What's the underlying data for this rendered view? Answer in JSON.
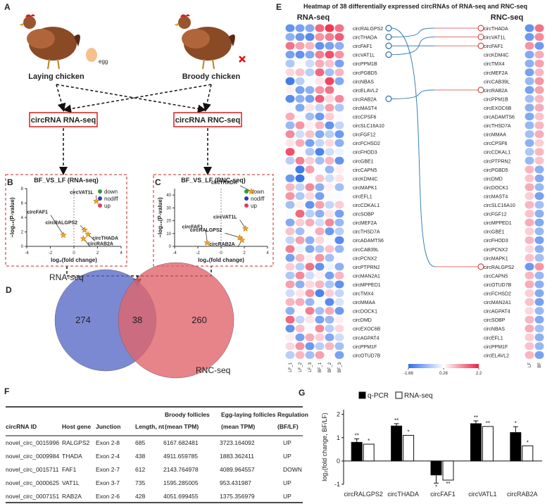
{
  "panel_a": {
    "panel": "A",
    "egg": "egg",
    "laying": "Laying chicken",
    "broody": "Broody chicken",
    "rna_box": "circRNA RNA-seq",
    "rnc_box": "circRNA RNC-seq"
  },
  "chart_data": [
    {
      "type": "scatter",
      "panel": "B",
      "title": "BF_VS_LF (RNA-seq)",
      "xlabel": "log₂(fold change)",
      "ylabel": "−log₁₀(P-value)",
      "xlim": [
        -4,
        4
      ],
      "xticks": [
        -4,
        -2,
        0,
        2,
        4
      ],
      "ylim": [
        0,
        8
      ],
      "yticks": [
        0,
        2,
        4,
        6,
        8
      ],
      "legend": [
        {
          "name": "down",
          "color": "#2ca02c"
        },
        {
          "name": "nodiff",
          "color": "#2340b8"
        },
        {
          "name": "up",
          "color": "#e0405e"
        }
      ],
      "series": [
        {
          "name": null,
          "color": "#f2a51e",
          "labels": [
            "circFAF1",
            "circVAT1L",
            "circRALGPS2",
            "circTHADA",
            "circRAB2A"
          ],
          "x": [
            -0.9,
            1.9,
            0.9,
            1.2,
            0.8
          ],
          "y": [
            1.6,
            6.3,
            2.3,
            1.7,
            1.1
          ]
        }
      ]
    },
    {
      "type": "scatter",
      "panel": "C",
      "title": "BF_VS_LF (RNC-seq)",
      "xlabel": "log₂(fold change)",
      "ylabel": "−log₁₀(P-value)",
      "xlim": [
        -4,
        4
      ],
      "xticks": [
        -4,
        -2,
        0,
        2,
        4
      ],
      "ylim": [
        0,
        45
      ],
      "yticks": [
        0,
        10,
        20,
        30,
        40
      ],
      "legend": [
        {
          "name": "down",
          "color": "#2ca02c"
        },
        {
          "name": "nodiff",
          "color": "#2340b8"
        },
        {
          "name": "up",
          "color": "#e0405e"
        }
      ],
      "series": [
        {
          "name": null,
          "color": "#f2a51e",
          "labels": [
            "circTHADA",
            "circVAT1L",
            "circRALGPS2",
            "circRAB2A",
            "circFAF1"
          ],
          "x": [
            2.6,
            2.1,
            1.6,
            1.8,
            -1.2
          ],
          "y": [
            43,
            14,
            7,
            5,
            3
          ]
        }
      ]
    },
    {
      "type": "venn",
      "panel": "D",
      "sets": [
        "RNA-seq",
        "RNC-seq"
      ],
      "values": [
        274,
        38,
        260
      ],
      "colors": [
        "#5a6cc8",
        "#e0656c"
      ]
    },
    {
      "type": "heatmap",
      "panel": "E",
      "title": "Heatmap of 38 differentially expressed circRNAs of RNA-seq and RNC-seq",
      "scale": {
        "ticks": [
          -1.68,
          0.26,
          2.2
        ],
        "colors": [
          "#2f6fe8",
          "#ffffff",
          "#ec2344"
        ]
      },
      "panels": [
        {
          "title": "RNA-seq",
          "columns": [
            "LF_1",
            "LF_2",
            "LF_3",
            "BF_1",
            "BF_2",
            "BF_3"
          ],
          "rows": [
            "circRALGPS2",
            "circTHADA",
            "circFAF1",
            "circVAT1L",
            "circPPM1B",
            "circPGBD5",
            "circNBAS",
            "circELAVL2",
            "circRAB2A",
            "circMAST4",
            "circCPSF6",
            "circSLC16A10",
            "circFGF12",
            "circFCHSD2",
            "circFHOD3",
            "circGBE1",
            "circCAPN5",
            "circKDM4C",
            "circMAPK1",
            "circEFL1",
            "circCDKAL1",
            "circSOBP",
            "circMEF2A",
            "circTHSD7A",
            "circADAMTS6",
            "circCAB39L",
            "circPCNX2",
            "circPTPRN2",
            "circMAN2A1",
            "circMPPED1",
            "circTMX4",
            "circMMAA",
            "circDOCK1",
            "circDMD",
            "circEXOC6B",
            "circAGPAT4",
            "circPPM1F",
            "circOTUD7B"
          ],
          "values": [
            [
              -1.2,
              -1.0,
              -0.9,
              1.6,
              2.0,
              1.5
            ],
            [
              -0.8,
              -1.1,
              -1.3,
              1.2,
              1.4,
              1.7
            ],
            [
              1.5,
              1.1,
              0.9,
              -1.2,
              -1.0,
              -0.8
            ],
            [
              -1.0,
              -1.2,
              -0.9,
              1.4,
              1.8,
              1.2
            ],
            [
              -0.5,
              0.3,
              -0.2,
              1.0,
              0.8,
              -1.0
            ],
            [
              0.6,
              0.8,
              -0.4,
              1.6,
              -0.6,
              0.9
            ],
            [
              -1.5,
              -0.4,
              0.2,
              0.5,
              1.9,
              -0.9
            ],
            [
              0.4,
              -1.0,
              -0.8,
              1.2,
              1.5,
              0.3
            ],
            [
              -1.3,
              -0.8,
              -1.0,
              1.7,
              0.6,
              1.3
            ],
            [
              0.2,
              -0.9,
              0.5,
              -0.3,
              1.1,
              -0.5
            ],
            [
              1.0,
              0.3,
              -0.6,
              -1.1,
              0.7,
              0.2
            ],
            [
              -0.7,
              1.2,
              0.4,
              0.9,
              -1.2,
              -0.3
            ],
            [
              1.3,
              -0.2,
              0.8,
              -0.9,
              -0.4,
              -1.1
            ],
            [
              0.5,
              1.0,
              -1.0,
              -0.3,
              0.6,
              -0.8
            ],
            [
              1.8,
              0.2,
              -0.5,
              -1.4,
              -0.2,
              0.1
            ],
            [
              -0.4,
              1.4,
              0.7,
              -0.6,
              0.9,
              -1.2
            ],
            [
              0.3,
              -1.5,
              1.1,
              0.2,
              -0.7,
              0.4
            ],
            [
              -1.1,
              -1.6,
              0.3,
              0.8,
              -0.2,
              0.5
            ],
            [
              0.9,
              -0.3,
              1.3,
              -0.8,
              0.4,
              -0.6
            ],
            [
              1.2,
              -0.5,
              0.6,
              -1.0,
              0.3,
              0.2
            ],
            [
              -0.6,
              0.4,
              -1.2,
              1.1,
              -0.3,
              0.7
            ],
            [
              0.2,
              1.6,
              -0.4,
              -0.8,
              0.5,
              -1.0
            ],
            [
              -0.9,
              0.7,
              1.0,
              -0.2,
              1.3,
              -0.7
            ],
            [
              0.8,
              -0.6,
              0.3,
              1.0,
              -1.1,
              -0.4
            ],
            [
              -0.3,
              1.1,
              -0.8,
              0.6,
              0.2,
              -1.3
            ],
            [
              1.4,
              0.1,
              -0.9,
              -0.5,
              0.8,
              -0.7
            ],
            [
              -1.0,
              0.9,
              0.4,
              1.2,
              -0.6,
              0.3
            ],
            [
              0.7,
              -0.4,
              1.5,
              -1.2,
              0.1,
              -0.8
            ],
            [
              -0.5,
              1.3,
              -0.2,
              0.4,
              -1.0,
              0.9
            ],
            [
              1.1,
              -0.8,
              0.6,
              0.9,
              -0.5,
              -1.2
            ],
            [
              -0.2,
              0.5,
              1.2,
              -1.4,
              0.7,
              -0.3
            ],
            [
              0.9,
              1.0,
              -0.7,
              0.2,
              -1.3,
              -0.1
            ],
            [
              -0.8,
              0.3,
              1.4,
              -0.6,
              1.0,
              -1.1
            ],
            [
              1.6,
              -0.3,
              0.5,
              -1.0,
              -0.7,
              0.4
            ],
            [
              -1.2,
              0.8,
              0.2,
              1.3,
              -0.4,
              0.6
            ],
            [
              0.4,
              -1.0,
              1.0,
              0.7,
              -0.9,
              -0.2
            ],
            [
              0.6,
              1.2,
              -1.1,
              -0.4,
              0.9,
              -0.6
            ],
            [
              -0.4,
              0.9,
              -0.6,
              1.1,
              0.3,
              -1.0
            ]
          ]
        },
        {
          "title": "RNC-seq",
          "columns": [
            "LF",
            "BF"
          ],
          "rows": [
            "circTHADA",
            "circVAT1L",
            "circFAF1",
            "circKDM4C",
            "circTMX4",
            "circMEF2A",
            "circCAB39L",
            "circRAB2A",
            "circPPM1B",
            "circEXOC6B",
            "circADAMTS6",
            "circTHSD7A",
            "circMMAA",
            "circCPSF6",
            "circCDKAL1",
            "circPTPRN2",
            "circPGBD5",
            "circDMD",
            "circDOCK1",
            "circMAST4",
            "circSLC16A10",
            "circFGF12",
            "circMPPED1",
            "circGBE1",
            "circFHOD3",
            "circPCNX2",
            "circMAPK1",
            "circRALGPS2",
            "circCAPN5",
            "circOTUD7B",
            "circFCHSD2",
            "circMAN2A1",
            "circAGPAT4",
            "circSOBP",
            "circNBAS",
            "circEFL1",
            "circPPM1F",
            "circELAVL2"
          ],
          "values": [
            [
              -1.2,
              1.5
            ],
            [
              -1.1,
              1.3
            ],
            [
              1.2,
              -1.1
            ],
            [
              -0.9,
              1.0
            ],
            [
              -0.8,
              1.1
            ],
            [
              -1.0,
              0.9
            ],
            [
              -0.7,
              1.2
            ],
            [
              -1.0,
              1.1
            ],
            [
              -0.6,
              0.9
            ],
            [
              -0.8,
              1.0
            ],
            [
              -0.9,
              0.8
            ],
            [
              -0.7,
              0.9
            ],
            [
              -0.6,
              1.0
            ],
            [
              -0.8,
              0.7
            ],
            [
              -0.5,
              0.9
            ],
            [
              -0.7,
              0.8
            ],
            [
              0.9,
              -0.8
            ],
            [
              0.8,
              -0.9
            ],
            [
              1.0,
              -0.7
            ],
            [
              0.7,
              -1.0
            ],
            [
              0.9,
              -0.6
            ],
            [
              0.8,
              -0.8
            ],
            [
              1.0,
              -0.9
            ],
            [
              0.7,
              -0.7
            ],
            [
              0.9,
              -1.0
            ],
            [
              0.6,
              -0.8
            ],
            [
              0.8,
              -0.6
            ],
            [
              -1.1,
              1.2
            ],
            [
              0.9,
              -0.7
            ],
            [
              1.0,
              -0.8
            ],
            [
              0.7,
              -0.9
            ],
            [
              0.8,
              -1.0
            ],
            [
              0.6,
              -0.7
            ],
            [
              0.9,
              -0.9
            ],
            [
              1.0,
              -0.6
            ],
            [
              0.7,
              -0.8
            ],
            [
              0.8,
              -0.7
            ],
            [
              0.9,
              -1.0
            ]
          ]
        }
      ]
    },
    {
      "type": "bar",
      "panel": "G",
      "ylabel": "log₂(fold change, BF/LF)",
      "categories": [
        "circRALGPS2",
        "circTHADA",
        "circFAF1",
        "circVATL1",
        "circRAB2A"
      ],
      "ylim": [
        -1,
        2.2
      ],
      "yticks": [
        -1,
        0,
        1,
        2
      ],
      "series": [
        {
          "name": "q-PCR",
          "color": "#000000",
          "values": [
            0.8,
            1.5,
            -0.6,
            1.6,
            1.22
          ],
          "errors": [
            0.15,
            0.1,
            0.35,
            0.12,
            0.25
          ],
          "marks": [
            "**",
            "**",
            "*",
            "**",
            "*"
          ]
        },
        {
          "name": "RNA-seq",
          "color": "#ffffff",
          "values": [
            0.72,
            1.1,
            -0.82,
            1.48,
            0.65
          ],
          "marks": [
            "*",
            "*",
            "**",
            "**",
            "*"
          ]
        }
      ]
    }
  ],
  "table": {
    "panel": "F",
    "header": [
      [
        "",
        "circRNA ID"
      ],
      [
        "",
        "Host gene"
      ],
      [
        "",
        "Junction"
      ],
      [
        "",
        "Length, nt"
      ],
      [
        "Broody follicles",
        "(mean TPM)"
      ],
      [
        "Egg-laying follicles",
        "(mean TPM)"
      ],
      [
        "Regulation",
        "(BF/LF)"
      ]
    ],
    "rows": [
      [
        "novel_circ_0015996",
        "RALGPS2",
        "Exon 2-8",
        "685",
        "6167.682481",
        "3723.164092",
        "UP"
      ],
      [
        "novel_circ_0009984",
        "THADA",
        "Exon 2-4",
        "438",
        "4911.659785",
        "1883.362411",
        "UP"
      ],
      [
        "novel_circ_0015711",
        "FAF1",
        "Exon 2-7",
        "612",
        "2143.764978",
        "4089.964557",
        "DOWN"
      ],
      [
        "novel_circ_0000625",
        "VAT1L",
        "Exon 3-7",
        "735",
        "1595.285005",
        "953.431987",
        "UP"
      ],
      [
        "novel_circ_0007151",
        "RAB2A",
        "Exon 2-6",
        "428",
        "4051.699455",
        "1375.356979",
        "UP"
      ]
    ]
  }
}
